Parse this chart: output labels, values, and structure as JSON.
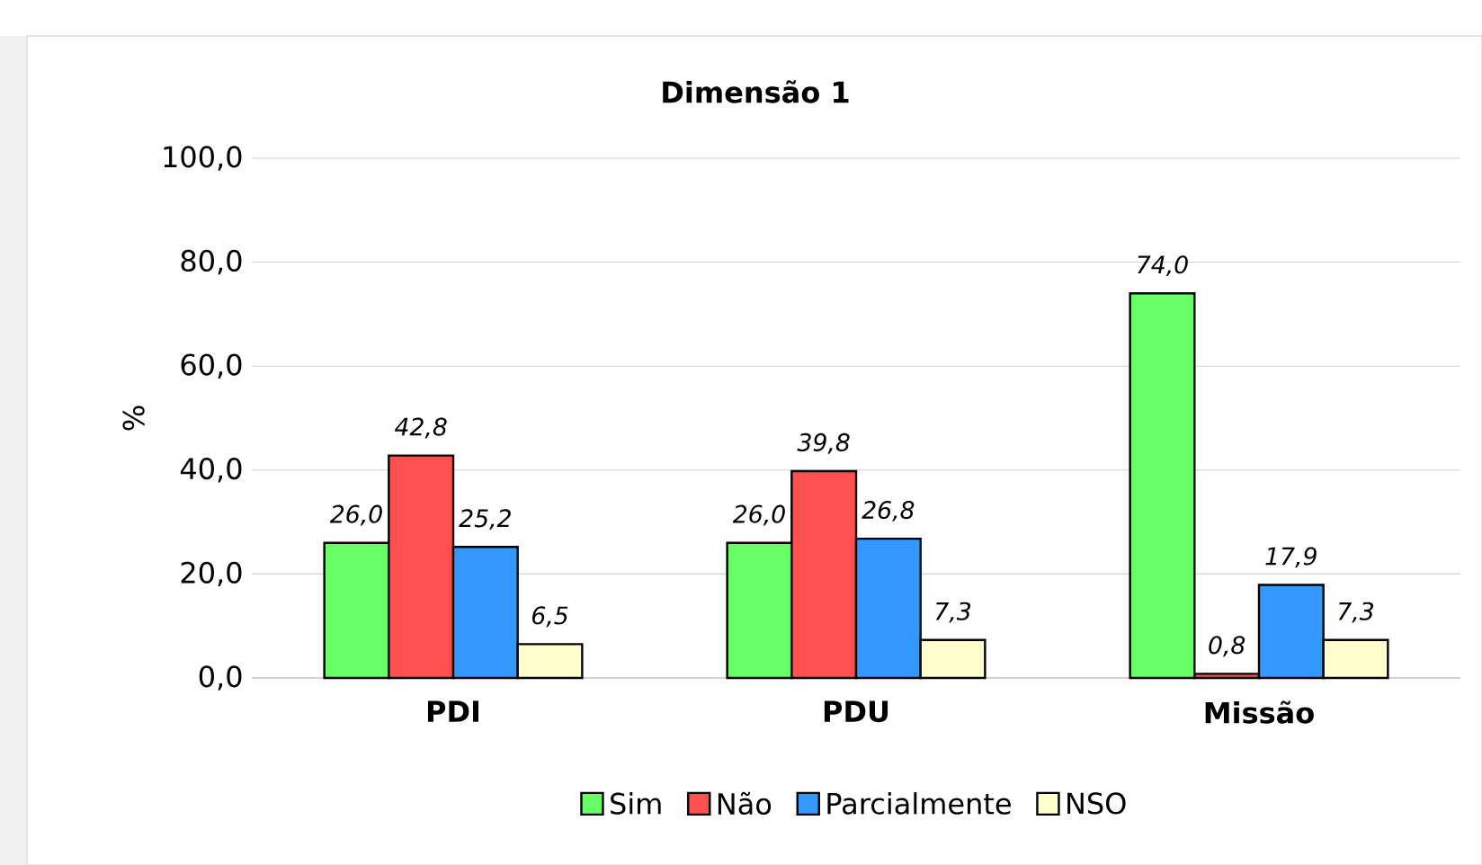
{
  "chart_data": {
    "type": "bar",
    "title": "Dimensão 1",
    "ylabel": "%",
    "categories": [
      "PDI",
      "PDU",
      "Missão"
    ],
    "series": [
      {
        "name": "Sim",
        "color": "#66ff66",
        "values": [
          26.0,
          26.0,
          74.0
        ],
        "value_labels": [
          "26,0",
          "26,0",
          "74,0"
        ]
      },
      {
        "name": "Não",
        "color": "#ff5050",
        "values": [
          42.8,
          39.8,
          0.8
        ],
        "value_labels": [
          "42,8",
          "39,8",
          "0,8"
        ]
      },
      {
        "name": "Parcialmente",
        "color": "#3399ff",
        "values": [
          25.2,
          26.8,
          17.9
        ],
        "value_labels": [
          "25,2",
          "26,8",
          "17,9"
        ]
      },
      {
        "name": "NSO",
        "color": "#ffffcc",
        "values": [
          6.5,
          7.3,
          7.3
        ],
        "value_labels": [
          "6,5",
          "7,3",
          "7,3"
        ]
      }
    ],
    "ylim": [
      0,
      100
    ],
    "yticks": [
      {
        "value": 0,
        "label": "0,0"
      },
      {
        "value": 20,
        "label": "20,0"
      },
      {
        "value": 40,
        "label": "40,0"
      },
      {
        "value": 60,
        "label": "60,0"
      },
      {
        "value": 80,
        "label": "80,0"
      },
      {
        "value": 100,
        "label": "100,0"
      }
    ],
    "grid": "y",
    "legend": "bottom"
  }
}
